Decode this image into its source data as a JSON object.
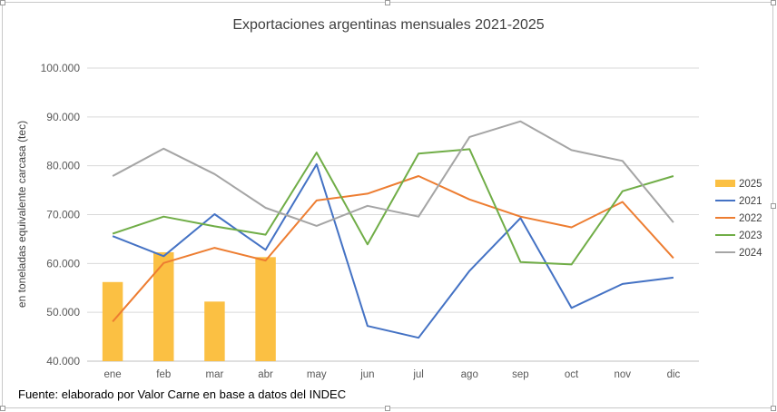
{
  "chart_data": {
    "type": "bar+line",
    "title": "Exportaciones argentinas mensuales 2021-2025",
    "ylabel": "en toneladas equivalente carcasa (tec)",
    "xlabel": "",
    "ylim": [
      40000,
      100000
    ],
    "y_ticks": [
      "40.000",
      "50.000",
      "60.000",
      "70.000",
      "80.000",
      "90.000",
      "100.000"
    ],
    "y_tick_values": [
      40000,
      50000,
      60000,
      70000,
      80000,
      90000,
      100000
    ],
    "categories": [
      "ene",
      "feb",
      "mar",
      "abr",
      "may",
      "jun",
      "jul",
      "ago",
      "sep",
      "oct",
      "nov",
      "dic"
    ],
    "grid": true,
    "legend_position": "right",
    "series": [
      {
        "name": "2025",
        "kind": "bar",
        "color": "#FBC043",
        "values": [
          56200,
          62300,
          52200,
          61300,
          null,
          null,
          null,
          null,
          null,
          null,
          null,
          null
        ]
      },
      {
        "name": "2021",
        "kind": "line",
        "color": "#4472C4",
        "values": [
          65600,
          61500,
          70100,
          62800,
          80300,
          47200,
          44800,
          58500,
          69300,
          50900,
          55800,
          57100
        ]
      },
      {
        "name": "2022",
        "kind": "line",
        "color": "#ED7D31",
        "values": [
          48100,
          60100,
          63200,
          60600,
          72900,
          74300,
          77900,
          73100,
          69600,
          67400,
          72600,
          61100
        ]
      },
      {
        "name": "2023",
        "kind": "line",
        "color": "#70AD47",
        "values": [
          66100,
          69600,
          67600,
          65900,
          82700,
          63900,
          82500,
          83400,
          60300,
          59800,
          74800,
          77900
        ]
      },
      {
        "name": "2024",
        "kind": "line",
        "color": "#A5A5A5",
        "values": [
          77900,
          83500,
          78300,
          71400,
          67700,
          71800,
          69600,
          85900,
          89100,
          83200,
          81000,
          68400
        ]
      }
    ]
  },
  "source": "Fuente: elaborado por  Valor Carne en base a datos del INDEC"
}
